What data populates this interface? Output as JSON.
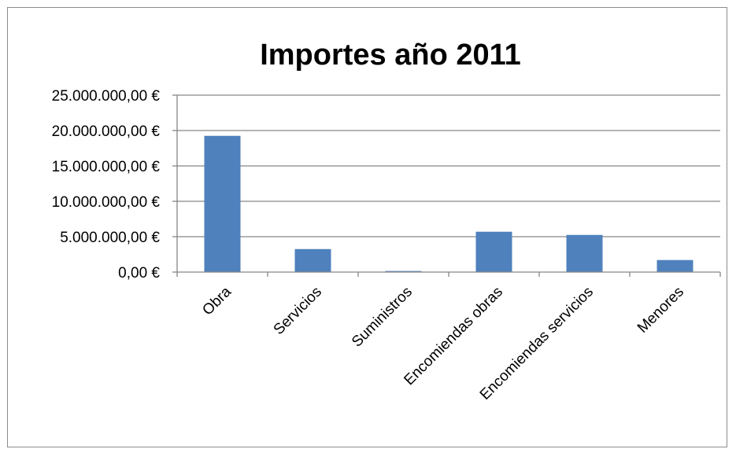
{
  "chart_data": {
    "type": "bar",
    "title": "Importes año 2011",
    "xlabel": "",
    "ylabel": "",
    "categories": [
      "Obra",
      "Servicios",
      "Suministros",
      "Encomiendas obras",
      "Encomiendas servicios",
      "Menores"
    ],
    "values": [
      19250000,
      3250000,
      150000,
      5700000,
      5250000,
      1700000
    ],
    "ylim": [
      0,
      25000000
    ],
    "yticks": [
      0,
      5000000,
      10000000,
      15000000,
      20000000,
      25000000
    ],
    "ytick_labels": [
      "0,00 €",
      "5.000.000,00 €",
      "10.000.000,00 €",
      "15.000.000,00 €",
      "20.000.000,00 €",
      "25.000.000,00 €"
    ],
    "grid": true,
    "legend": "none",
    "colors": {
      "bar": "#4f81bd",
      "grid": "#868686",
      "axis": "#868686"
    }
  }
}
